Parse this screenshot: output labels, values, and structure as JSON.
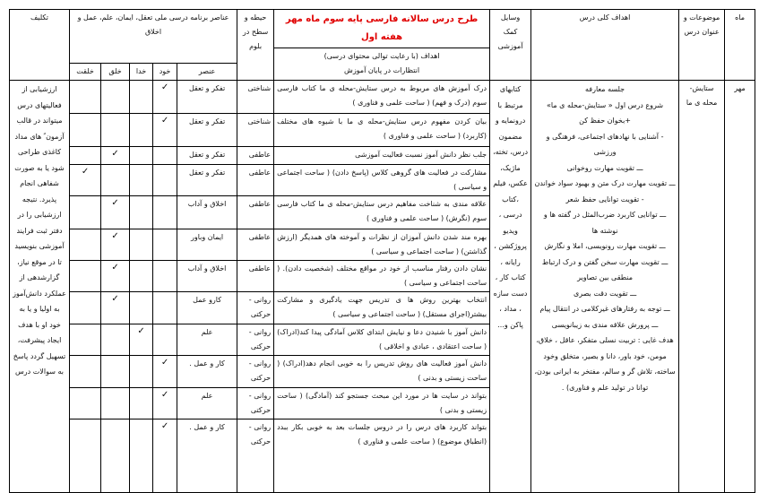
{
  "header": {
    "month": "ماه",
    "topic": "موضوعات و عنوان درس",
    "goals": "اهداف کلی درس",
    "materials": "وسایل کمک آموزشی",
    "title": "طرح درس سالانه فارسی پایه سوم ماه مهر هفته اول",
    "objectives_line1": "اهداف (با رعایت توالی محتوای درسی)",
    "objectives_line2": "انتظارات در پایان آموزش",
    "domain": "حیطه و سطح در بلوم",
    "elements": "عناصر برنامه درسی ملی تعقل، ایمان، علم، عمل و اخلاق",
    "element": "عنصر",
    "khod": "خود",
    "khoda": "خدا",
    "khalgh": "خلق",
    "khelghat": "خلقت",
    "homework": "تکلیف"
  },
  "month": "مهر",
  "topic": "ستایش- محله ی ما",
  "materials": "کتابهای مرتبط با درونمایه و مضمون درس، تخته، ماژیک، عکس، فیلم ،کتاب درسی ، ویدیو پروژکشن ، رایانه ، کتاب کار ، دست سازه ، مداد ، پاکن و...",
  "goals": [
    "جلسه معارفه",
    "شروع درس اول « ستایش-محله ی ما»",
    "+بخوان حفظ کن",
    "- آشنایی با نهادهای اجتماعی، فرهنگی و ورزشی",
    "ـــ تقویت مهارت روخوانی",
    "ـــ تقویت مهارت درک متن و بهبود سواد خواندن",
    "- تقویت توانایی حفظ شعر",
    "ـــ توانایی کاربرد ضرب‌المثل در گفته ها و نوشته ها",
    "ـــ تقویت مهارت رونویسی، املا و نگارش",
    "ـــ تقویت مهارت سخن گفتن و درک ارتباط منطقی بین تصاویر",
    "ـــ تقویت دقت بصری",
    "ـــ توجه به رفتارهای غیرکلامی در انتقال پیام",
    "ـــ پرورش علاقه مندی به زیبانویسی",
    "هدف غایی : تربیت نسلی متفکر، عاقل ، خلاق، مومن، خود باور، دانا و بصیر، متخلق وخود ساخته، تلاش گر و سالم، مفتخر به ایرانی بودن، توانا در تولید علم و فناوری) ."
  ],
  "homework": "ارزشیابی از فعالیتهای درس میتواند در قالب آزمون ً های مداد کاغذی طراحی شود یا به صورت شفاهی انجام پذیرد. نتیجه ارزشیابی را در دفتر ثبت فرایند آموزشی بنویسید تا در موقع نیاز، گزارشدهی از عملکرد دانش‌آموز به اولیا و یا به خود او با هدف ایجاد پیشرفت، تسهیل گردد پاسخ به سوالات درس",
  "rows": [
    {
      "objective": "درک آموزش های مربوط به درس ستایش-محله ی ما کتاب فارسی سوم (درک و فهم) ( ساحت علمی و فناوری )",
      "domain": "شناختی",
      "element": "تفکر و تعقل",
      "check": "khod"
    },
    {
      "objective": "بیان کردن مفهوم درس ستایش-محله ی ما با شیوه های مختلف (کاربرد) ( ساحت علمی و فناوری )",
      "domain": "شناختی",
      "element": "تفکر و تعقل",
      "check": "khod"
    },
    {
      "objective": "جلب نظر دانش آموز نسبت فعالیت آموزشی",
      "domain": "عاطفی",
      "element": "تفکر و تعقل",
      "check": "khalgh"
    },
    {
      "objective": "مشارکت در فعالیت های گروهی کلاس (پاسخ دادن) ( ساحت اجتماعی و سیاسی )",
      "domain": "عاطفی",
      "element": "تفکر و تعقل",
      "check": "khelghat"
    },
    {
      "objective": "علاقه مندی به شناخت مفاهیم درس ستایش-محله ی ما کتاب فارسی سوم (نگرش) ( ساحت علمی و فناوری )",
      "domain": "عاطفی",
      "element": "اخلاق و آداب",
      "check": "khalgh"
    },
    {
      "objective": "بهره مند شدن دانش آموزان از نظرات و آموخته های همدیگر (ارزش گذاشتن) ( ساحت اجتماعی و سیاسی )",
      "domain": "عاطفی",
      "element": "ایمان وباور",
      "check": "khalgh"
    },
    {
      "objective": "نشان دادن رفتار مناسب از خود در مواقع مختلف (شخصیت دادن). ( ساحت اجتماعی و سیاسی )",
      "domain": "عاطفی",
      "element": "اخلاق و آداب",
      "check": "khalgh"
    },
    {
      "objective": "انتخاب بهترین روش ها ی تدریس جهت یادگیری و مشارکت بیشتر(اجرای مستقل) ( ساحت اجتماعی و سیاسی )",
      "domain": "روانی - حرکتی",
      "element": "کارو عمل",
      "check": "khalgh"
    },
    {
      "objective": "دانش آموز با شنیدن دعا و نیایش ابتدای کلاس آمادگی پیدا کند(ادراک) ( ساحت اعتقادی ، عبادی و اخلاقی )",
      "domain": "روانی - حرکتی",
      "element": "علم",
      "check": "khoda"
    },
    {
      "objective": "دانش آموز فعالیت های روش تدریس را به خوبی انجام دهد(ادراک) ( ساحت زیستی و بدنی )",
      "domain": "روانی - حرکتی",
      "element": "کار و عمل .",
      "check": "khod"
    },
    {
      "objective": "بتواند در سایت ها در مورد این مبحث جستجو کند (آمادگی) ( ساحت زیستی و بدنی )",
      "domain": "روانی - حرکتی",
      "element": "علم",
      "check": "khod"
    },
    {
      "objective": "بتواند کاربرد های درس را در دروس جلسات بعد به خوبی بکار ببدد (انطباق موضوع) ( ساحت علمی و فناوری )",
      "domain": "روانی - حرکتی",
      "element": "کار و عمل .",
      "check": "khod"
    }
  ],
  "check_symbol": "✓"
}
